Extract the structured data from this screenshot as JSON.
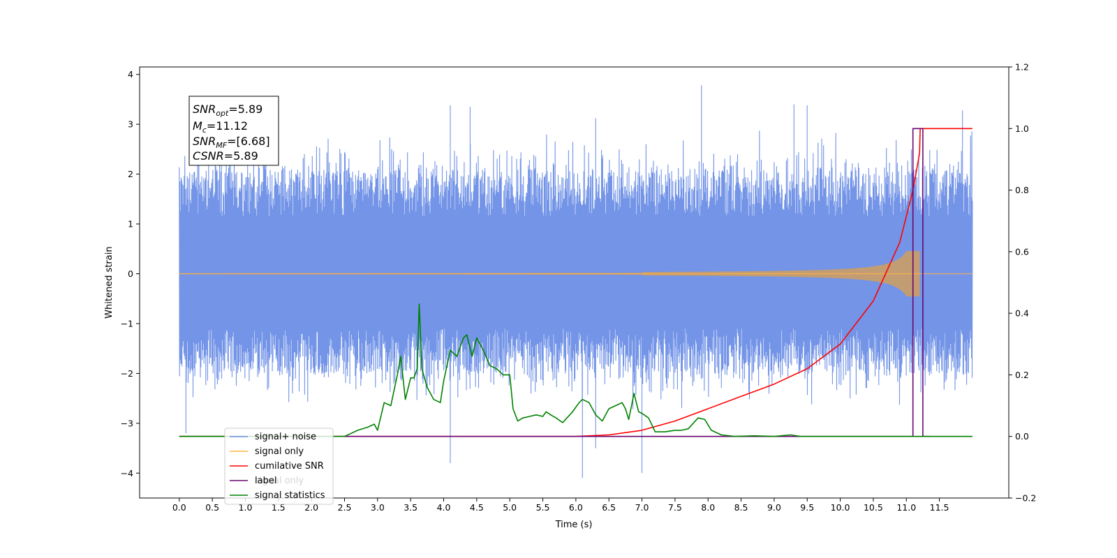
{
  "chart_data": {
    "type": "line",
    "xlabel": "Time (s)",
    "ylabel": "Whitened strain",
    "xlim": [
      -0.6,
      12.55
    ],
    "ylim": [
      -4.5,
      4.15
    ],
    "y2lim": [
      -0.2,
      1.2
    ],
    "x_ticks": [
      "0.0",
      "0.5",
      "1.0",
      "1.5",
      "2.0",
      "2.5",
      "3.0",
      "3.5",
      "4.0",
      "4.5",
      "5.0",
      "5.5",
      "6.0",
      "6.5",
      "7.0",
      "7.5",
      "8.0",
      "8.5",
      "9.0",
      "9.5",
      "10.0",
      "10.5",
      "11.0",
      "11.5"
    ],
    "y_ticks": [
      "−4",
      "−3",
      "−2",
      "−1",
      "0",
      "1",
      "2",
      "3",
      "4"
    ],
    "y2_ticks": [
      "−0.2",
      "0.0",
      "0.2",
      "0.4",
      "0.6",
      "0.8",
      "1.0",
      "1.2"
    ],
    "annotation": {
      "snr_opt": {
        "base": "SNR",
        "sub": "opt",
        "value": "=5.89"
      },
      "mc": {
        "base": "M",
        "sub": "c",
        "value": "=11.12"
      },
      "snr_mf": {
        "base": "SNR",
        "sub": "MF",
        "value": "=[6.68]"
      },
      "csnr": {
        "base": "CSNR",
        "value": "=5.89"
      }
    },
    "legend": {
      "position": "lower-left",
      "entries": [
        {
          "label": "signal+ noise",
          "color": "#6c8ee6"
        },
        {
          "label": "signal only",
          "color": "#ffb347"
        },
        {
          "label": "cumilative SNR",
          "color": "#ff0000"
        },
        {
          "label": "label",
          "color": "#6a0572",
          "hidden_label": "signal only"
        },
        {
          "label": "signal statistics",
          "color": "#008000"
        }
      ]
    },
    "series": [
      {
        "name": "signal+ noise",
        "axis": "left",
        "color": "#6c8ee6",
        "x_range": [
          0.0,
          12.0
        ],
        "envelope_typical": [
          -2.0,
          2.1
        ],
        "spikes": [
          [
            4.1,
            3.38
          ],
          [
            4.4,
            3.35
          ],
          [
            6.3,
            3.12
          ],
          [
            7.9,
            3.78
          ],
          [
            9.3,
            3.4
          ],
          [
            9.5,
            3.38
          ],
          [
            11.85,
            3.28
          ],
          [
            6.1,
            -4.1
          ],
          [
            7.0,
            -4.0
          ],
          [
            4.1,
            -3.8
          ],
          [
            0.1,
            -3.2
          ],
          [
            6.3,
            -3.5
          ]
        ]
      },
      {
        "name": "signal only",
        "axis": "left",
        "color": "#ffb347",
        "x_range": [
          0.0,
          12.0
        ],
        "chirp_merger_time": 11.2,
        "peak_amplitude": 0.45
      },
      {
        "name": "cumilative SNR",
        "axis": "right",
        "color": "#ff0000",
        "x": [
          0.0,
          6.0,
          6.5,
          7.0,
          7.5,
          8.0,
          8.5,
          9.0,
          9.5,
          10.0,
          10.5,
          10.9,
          11.1,
          11.2,
          11.21,
          12.0
        ],
        "values": [
          0.0,
          0.0,
          0.005,
          0.02,
          0.05,
          0.09,
          0.13,
          0.17,
          0.22,
          0.3,
          0.44,
          0.63,
          0.8,
          0.92,
          1.0,
          1.0
        ]
      },
      {
        "name": "label",
        "axis": "right",
        "color": "#6a0572",
        "x": [
          0.0,
          11.1,
          11.1,
          11.25,
          11.25,
          11.35
        ],
        "values": [
          0.0,
          0.0,
          1.0,
          1.0,
          0.0,
          0.0
        ]
      },
      {
        "name": "signal statistics",
        "axis": "right",
        "color": "#008000",
        "x": [
          0.0,
          2.5,
          2.7,
          2.85,
          2.95,
          3.0,
          3.1,
          3.2,
          3.3,
          3.35,
          3.42,
          3.5,
          3.55,
          3.6,
          3.63,
          3.67,
          3.75,
          3.85,
          3.95,
          4.0,
          4.1,
          4.2,
          4.3,
          4.35,
          4.43,
          4.5,
          4.6,
          4.7,
          4.8,
          4.9,
          5.0,
          5.05,
          5.12,
          5.2,
          5.3,
          5.4,
          5.5,
          5.55,
          5.62,
          5.7,
          5.8,
          5.95,
          6.05,
          6.1,
          6.2,
          6.3,
          6.4,
          6.5,
          6.6,
          6.7,
          6.75,
          6.8,
          6.88,
          6.95,
          7.0,
          7.1,
          7.2,
          7.35,
          7.5,
          7.6,
          7.7,
          7.85,
          7.95,
          8.05,
          8.2,
          8.4,
          8.7,
          9.0,
          9.25,
          9.4,
          10.0,
          12.0
        ],
        "values": [
          0.0,
          0.0,
          0.02,
          0.03,
          0.04,
          0.02,
          0.11,
          0.1,
          0.2,
          0.26,
          0.12,
          0.19,
          0.19,
          0.22,
          0.43,
          0.22,
          0.16,
          0.12,
          0.11,
          0.18,
          0.28,
          0.26,
          0.32,
          0.33,
          0.26,
          0.32,
          0.28,
          0.23,
          0.22,
          0.2,
          0.2,
          0.09,
          0.05,
          0.06,
          0.065,
          0.07,
          0.065,
          0.08,
          0.07,
          0.06,
          0.045,
          0.08,
          0.11,
          0.12,
          0.11,
          0.07,
          0.05,
          0.09,
          0.1,
          0.11,
          0.09,
          0.055,
          0.14,
          0.08,
          0.075,
          0.06,
          0.015,
          0.015,
          0.02,
          0.02,
          0.025,
          0.06,
          0.055,
          0.02,
          0.005,
          0.0,
          0.002,
          0.0,
          0.005,
          0.0,
          0.0,
          0.0
        ]
      }
    ]
  }
}
